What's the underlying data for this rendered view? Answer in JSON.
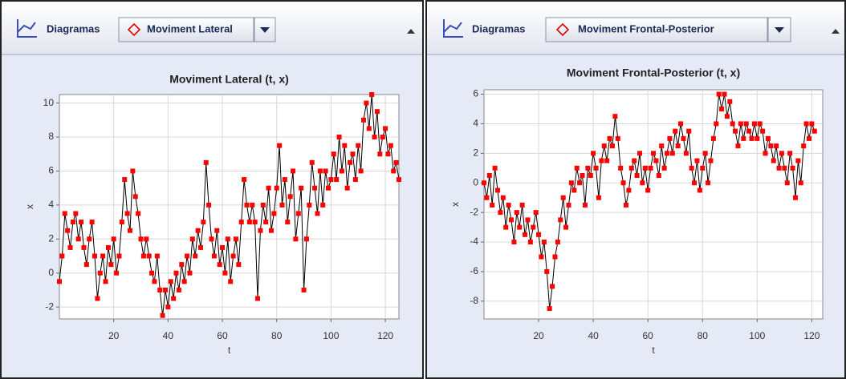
{
  "toolbars": [
    {
      "label": "Diagramas",
      "selection": "Moviment Lateral"
    },
    {
      "label": "Diagramas",
      "selection": "Moviment Frontal-Posterior"
    }
  ],
  "chart_data": [
    {
      "type": "line",
      "title": "Moviment Lateral (t, x)",
      "xlabel": "t",
      "ylabel": "x",
      "x": [
        0,
        1,
        2,
        3,
        4,
        5,
        6,
        7,
        8,
        9,
        10,
        11,
        12,
        13,
        14,
        15,
        16,
        17,
        18,
        19,
        20,
        21,
        22,
        23,
        24,
        25,
        26,
        27,
        28,
        29,
        30,
        31,
        32,
        33,
        34,
        35,
        36,
        37,
        38,
        39,
        40,
        41,
        42,
        43,
        44,
        45,
        46,
        47,
        48,
        49,
        50,
        51,
        52,
        53,
        54,
        55,
        56,
        57,
        58,
        59,
        60,
        61,
        62,
        63,
        64,
        65,
        66,
        67,
        68,
        69,
        70,
        71,
        72,
        73,
        74,
        75,
        76,
        77,
        78,
        79,
        80,
        81,
        82,
        83,
        84,
        85,
        86,
        87,
        88,
        89,
        90,
        91,
        92,
        93,
        94,
        95,
        96,
        97,
        98,
        99,
        100,
        101,
        102,
        103,
        104,
        105,
        106,
        107,
        108,
        109,
        110,
        111,
        112,
        113,
        114,
        115,
        116,
        117,
        118,
        119,
        120,
        121,
        122,
        123,
        124,
        125
      ],
      "series": [
        {
          "color": "#ff0000",
          "line_color": "#000000",
          "values": [
            -0.5,
            1,
            3.5,
            2.5,
            1.5,
            3,
            3.5,
            2,
            3,
            1.5,
            0.5,
            2,
            3,
            1,
            -1.5,
            0,
            1,
            -0.5,
            1.5,
            0.5,
            2,
            0,
            1,
            3,
            5.5,
            3.5,
            2.5,
            6,
            4.5,
            3.5,
            2,
            1,
            2,
            1,
            0,
            -0.5,
            1,
            -1,
            -2.5,
            -1,
            -2,
            -0.5,
            -1.5,
            0,
            -1,
            0.5,
            -0.5,
            1,
            0,
            2,
            1,
            2.5,
            1.5,
            3,
            6.5,
            4,
            2,
            1,
            2.5,
            0.5,
            1.5,
            0,
            2,
            -0.5,
            1,
            2,
            0.5,
            3,
            5.5,
            4,
            3,
            4,
            3,
            -1.5,
            2.5,
            4,
            3,
            5,
            2.5,
            3.5,
            5,
            7.5,
            4,
            5.5,
            3,
            4.5,
            6,
            2,
            3.5,
            5,
            -1,
            2,
            4,
            6.5,
            5,
            3.5,
            6,
            4,
            6,
            5,
            5.5,
            7,
            5.5,
            8,
            6,
            7.5,
            5,
            6.5,
            7,
            5.5,
            7.5,
            6,
            9,
            10,
            8.5,
            10.5,
            8,
            9.5,
            7,
            8,
            8.5,
            7,
            7.5,
            6,
            6.5,
            5.5
          ]
        }
      ],
      "xlim": [
        0,
        125
      ],
      "ylim": [
        -2.7,
        10.5
      ],
      "xticks": [
        20,
        40,
        60,
        80,
        100,
        120
      ],
      "yticks": [
        -2,
        0,
        2,
        4,
        6,
        8,
        10
      ],
      "grid": true
    },
    {
      "type": "line",
      "title": "Moviment Frontal-Posterior (t, x)",
      "xlabel": "t",
      "ylabel": "x",
      "x": [
        0,
        1,
        2,
        3,
        4,
        5,
        6,
        7,
        8,
        9,
        10,
        11,
        12,
        13,
        14,
        15,
        16,
        17,
        18,
        19,
        20,
        21,
        22,
        23,
        24,
        25,
        26,
        27,
        28,
        29,
        30,
        31,
        32,
        33,
        34,
        35,
        36,
        37,
        38,
        39,
        40,
        41,
        42,
        43,
        44,
        45,
        46,
        47,
        48,
        49,
        50,
        51,
        52,
        53,
        54,
        55,
        56,
        57,
        58,
        59,
        60,
        61,
        62,
        63,
        64,
        65,
        66,
        67,
        68,
        69,
        70,
        71,
        72,
        73,
        74,
        75,
        76,
        77,
        78,
        79,
        80,
        81,
        82,
        83,
        84,
        85,
        86,
        87,
        88,
        89,
        90,
        91,
        92,
        93,
        94,
        95,
        96,
        97,
        98,
        99,
        100,
        101,
        102,
        103,
        104,
        105,
        106,
        107,
        108,
        109,
        110,
        111,
        112,
        113,
        114,
        115,
        116,
        117,
        118,
        119,
        120,
        121
      ],
      "series": [
        {
          "color": "#ff0000",
          "line_color": "#000000",
          "values": [
            0,
            -1,
            0.5,
            -1.5,
            1,
            -0.5,
            -2,
            -1,
            -3,
            -1.5,
            -2.5,
            -4,
            -2,
            -3,
            -1.5,
            -3.5,
            -2.5,
            -4,
            -3,
            -2,
            -3.5,
            -5,
            -4,
            -6,
            -8.5,
            -7,
            -5,
            -4,
            -2.5,
            -1,
            -3,
            -1.5,
            0,
            -0.5,
            1,
            0,
            0.5,
            -1.5,
            1,
            0.5,
            2,
            1,
            -1,
            1.5,
            2.5,
            1.5,
            3,
            2.5,
            4.5,
            3,
            1,
            0,
            -1.5,
            -0.5,
            1,
            1.5,
            0.5,
            2,
            0,
            1,
            -0.5,
            1,
            2,
            1.5,
            0.5,
            2.5,
            1,
            2,
            3,
            2,
            3.5,
            2.5,
            4,
            3,
            2,
            3.5,
            1,
            0,
            1.5,
            -0.5,
            1,
            2,
            0,
            1.5,
            3,
            4,
            6,
            5,
            6,
            4.5,
            5.5,
            4,
            3.5,
            2.5,
            4,
            3,
            4,
            3.5,
            3,
            4,
            3,
            4,
            3.5,
            2,
            3,
            2.5,
            1.5,
            2.5,
            1,
            2,
            1,
            0,
            2,
            1,
            -1,
            1.5,
            0,
            2.5,
            4,
            3,
            4,
            3.5
          ]
        }
      ],
      "xlim": [
        0,
        124
      ],
      "ylim": [
        -9.2,
        6.3
      ],
      "xticks": [
        20,
        40,
        60,
        80,
        100,
        120
      ],
      "yticks": [
        -8,
        -6,
        -4,
        -2,
        0,
        2,
        4,
        6
      ],
      "grid": true
    }
  ]
}
